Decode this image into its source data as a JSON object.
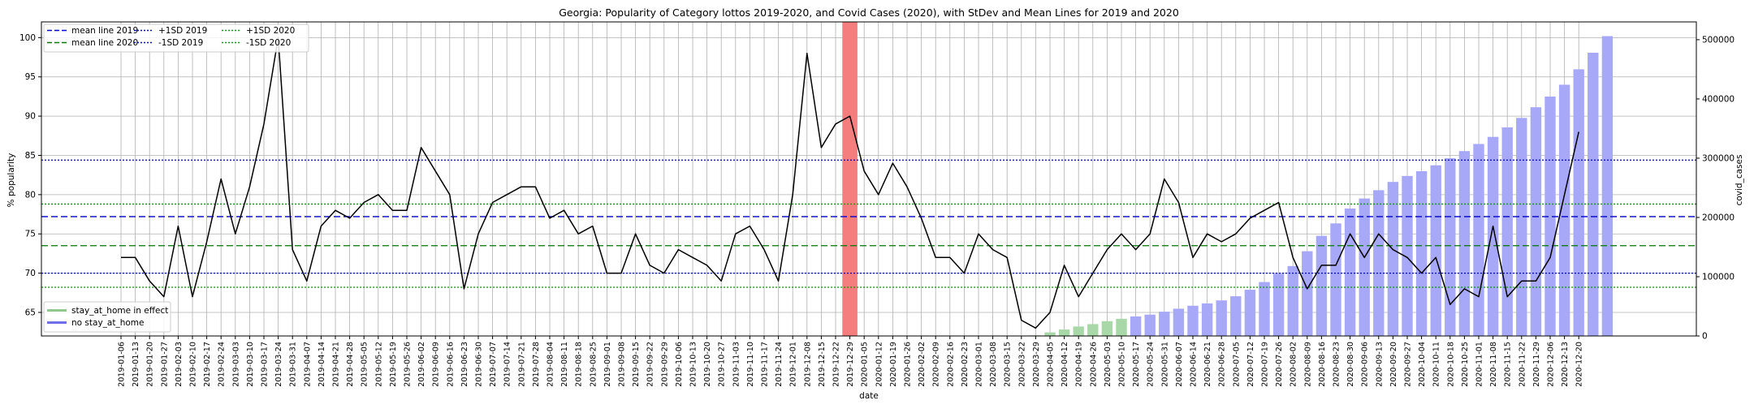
{
  "chart_data": {
    "type": "bar+line",
    "title": "Georgia: Popularity of Category lottos 2019-2020, and Covid Cases (2020), with StDev and Mean Lines for 2019 and 2020",
    "xlabel": "date",
    "ylabel": "% popularity",
    "y2label": "covid_cases",
    "ylim": [
      62,
      102
    ],
    "y2lim": [
      0,
      530000
    ],
    "yticks": [
      "65",
      "70",
      "75",
      "80",
      "85",
      "90",
      "95",
      "100"
    ],
    "y2ticks": [
      "0",
      "100000",
      "200000",
      "300000",
      "400000",
      "500000"
    ],
    "grid": true,
    "x": [
      "2019-01-06",
      "2019-01-13",
      "2019-01-20",
      "2019-01-27",
      "2019-02-03",
      "2019-02-10",
      "2019-02-17",
      "2019-02-24",
      "2019-03-03",
      "2019-03-10",
      "2019-03-17",
      "2019-03-24",
      "2019-03-31",
      "2019-04-07",
      "2019-04-14",
      "2019-04-21",
      "2019-04-28",
      "2019-05-05",
      "2019-05-12",
      "2019-05-19",
      "2019-05-26",
      "2019-06-02",
      "2019-06-09",
      "2019-06-16",
      "2019-06-23",
      "2019-06-30",
      "2019-07-07",
      "2019-07-14",
      "2019-07-21",
      "2019-07-28",
      "2019-08-04",
      "2019-08-11",
      "2019-08-18",
      "2019-08-25",
      "2019-09-01",
      "2019-09-08",
      "2019-09-15",
      "2019-09-22",
      "2019-09-29",
      "2019-10-06",
      "2019-10-13",
      "2019-10-20",
      "2019-10-27",
      "2019-11-03",
      "2019-11-10",
      "2019-11-17",
      "2019-11-24",
      "2019-12-01",
      "2019-12-08",
      "2019-12-15",
      "2019-12-22",
      "2019-12-29",
      "2020-01-05",
      "2020-01-12",
      "2020-01-19",
      "2020-01-26",
      "2020-02-02",
      "2020-02-09",
      "2020-02-16",
      "2020-02-23",
      "2020-03-01",
      "2020-03-08",
      "2020-03-15",
      "2020-03-22",
      "2020-03-29",
      "2020-04-05",
      "2020-04-12",
      "2020-04-19",
      "2020-04-26",
      "2020-05-03",
      "2020-05-10",
      "2020-05-17",
      "2020-05-24",
      "2020-05-31",
      "2020-06-07",
      "2020-06-14",
      "2020-06-21",
      "2020-06-28",
      "2020-07-05",
      "2020-07-12",
      "2020-07-19",
      "2020-07-26",
      "2020-08-02",
      "2020-08-09",
      "2020-08-16",
      "2020-08-23",
      "2020-08-30",
      "2020-09-06",
      "2020-09-13",
      "2020-09-20",
      "2020-09-27",
      "2020-10-04",
      "2020-10-11",
      "2020-10-18",
      "2020-10-25",
      "2020-11-01",
      "2020-11-08",
      "2020-11-15",
      "2020-11-22",
      "2020-11-29",
      "2020-12-06",
      "2020-12-13",
      "2020-12-20"
    ],
    "popularity": [
      72,
      72,
      69,
      67,
      76,
      67,
      74,
      82,
      75,
      81,
      89,
      100,
      73,
      69,
      76,
      78,
      77,
      79,
      80,
      78,
      78,
      86,
      83,
      80,
      68,
      75,
      79,
      80,
      81,
      81,
      77,
      78,
      75,
      76,
      70,
      70,
      75,
      71,
      70,
      73,
      72,
      71,
      69,
      75,
      76,
      73,
      69,
      80,
      98,
      86,
      89,
      90,
      83,
      80,
      84,
      81,
      77,
      72,
      72,
      70,
      75,
      73,
      72,
      64,
      63,
      65,
      71,
      67,
      70,
      73,
      75,
      73,
      75,
      82,
      79,
      72,
      75,
      74,
      75,
      77,
      78,
      79,
      72,
      68,
      71,
      71,
      75,
      72,
      75,
      73,
      72,
      70,
      72,
      66,
      68,
      67,
      76,
      67,
      69,
      69,
      72,
      80,
      88
    ],
    "covid_cases": [
      0,
      0,
      0,
      0,
      0,
      0,
      0,
      0,
      0,
      0,
      0,
      0,
      0,
      0,
      0,
      0,
      0,
      0,
      0,
      0,
      0,
      0,
      0,
      0,
      0,
      0,
      0,
      0,
      0,
      0,
      0,
      0,
      0,
      0,
      0,
      0,
      0,
      0,
      0,
      0,
      0,
      0,
      0,
      0,
      0,
      0,
      0,
      0,
      0,
      0,
      0,
      0,
      0,
      0,
      0,
      0,
      0,
      0,
      0,
      0,
      0,
      0,
      0,
      0,
      1000,
      6000,
      11000,
      16000,
      20000,
      25000,
      29000,
      33000,
      36000,
      41000,
      46000,
      51000,
      55000,
      60000,
      67000,
      78000,
      91000,
      105000,
      118000,
      143000,
      169000,
      190000,
      215000,
      232000,
      246000,
      260000,
      270000,
      278000,
      288000,
      300000,
      312000,
      324000,
      336000,
      352000,
      368000,
      386000,
      404000,
      424000,
      450000,
      478000,
      506000
    ],
    "stay_at_home_weeks": [
      "2020-03-29",
      "2020-04-05",
      "2020-04-12",
      "2020-04-19",
      "2020-04-26",
      "2020-05-03",
      "2020-05-10"
    ],
    "highlight_week": "2019-12-29",
    "mean_2019": 77.2,
    "mean_2020": 73.5,
    "plus_1sd_2019": 84.4,
    "minus_1sd_2019": 70.0,
    "plus_1sd_2020": 78.8,
    "minus_1sd_2020": 68.2,
    "legend_lines": [
      {
        "label": "mean line 2019",
        "color": "#0000cc",
        "dash": "dashed"
      },
      {
        "label": "mean line 2020",
        "color": "#007700",
        "dash": "dashed"
      },
      {
        "label": "+1SD 2019",
        "color": "#0000cc",
        "dash": "dotted"
      },
      {
        "label": "-1SD 2019",
        "color": "#0000cc",
        "dash": "dotted"
      },
      {
        "label": "+1SD 2020",
        "color": "#009900",
        "dash": "dotted"
      },
      {
        "label": "-1SD 2020",
        "color": "#009900",
        "dash": "dotted"
      }
    ],
    "legend_bars": [
      {
        "label": "stay_at_home in effect",
        "color": "#90c890"
      },
      {
        "label": "no stay_at_home",
        "color": "#6f6fe8"
      }
    ],
    "colors": {
      "line": "#000000",
      "bar_normal": "#a8a8f8",
      "bar_stay_home": "#a8d8a8",
      "highlight": "#f47e7e"
    }
  }
}
